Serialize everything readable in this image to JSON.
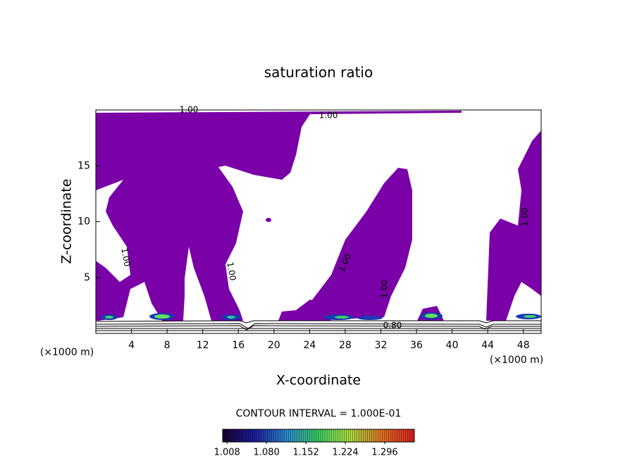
{
  "chart_data": {
    "type": "contour",
    "title": "saturation ratio",
    "x_label": "X-coordinate",
    "y_label": "Z-coordinate",
    "x_unit_labels": [
      "(×1000 m)",
      "(×1000 m)"
    ],
    "xlim": [
      0,
      50
    ],
    "ylim": [
      0,
      20
    ],
    "xticks": [
      4,
      8,
      12,
      16,
      20,
      24,
      28,
      32,
      36,
      40,
      44,
      48
    ],
    "yticks": [
      5,
      10,
      15
    ],
    "fill_color": "#7a00a8",
    "contour_labels": [
      "1.00",
      "1.00",
      "1.00",
      "1.00",
      "1.00",
      "1.00",
      "1.00",
      "0.80"
    ],
    "contour_interval_label": "CONTOUR INTERVAL = 1.000E-01",
    "colorbar_lim": [
      1.0,
      1.35
    ],
    "colorbar_ticks": [
      {
        "value": 1.008,
        "label": "1.008"
      },
      {
        "value": 1.08,
        "label": "1.080"
      },
      {
        "value": 1.152,
        "label": "1.152"
      },
      {
        "value": 1.224,
        "label": "1.224"
      },
      {
        "value": 1.296,
        "label": "1.296"
      }
    ],
    "colormap": [
      "#1a0030",
      "#1a1aa0",
      "#2a8ad0",
      "#3ad060",
      "#b0e040",
      "#e07020",
      "#e02020"
    ]
  }
}
